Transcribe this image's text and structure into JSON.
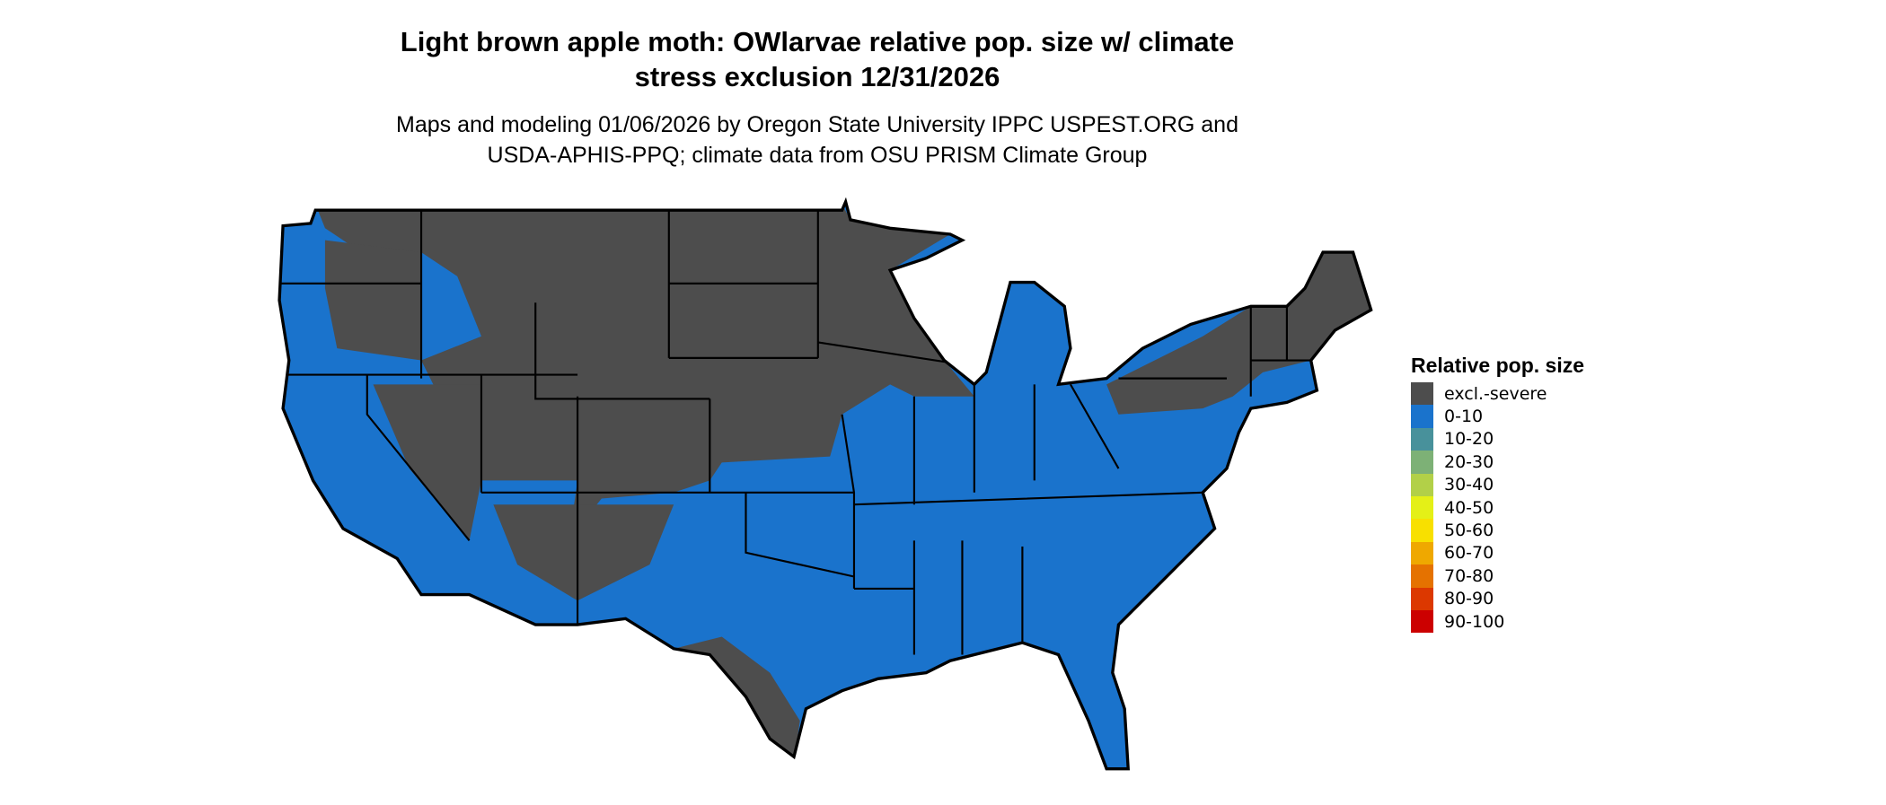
{
  "title": "Light brown apple moth: OWlarvae relative pop. size w/ climate stress exclusion 12/31/2026",
  "title_lines": [
    "Light brown apple moth: OWlarvae relative pop. size w/ climate",
    "stress exclusion 12/31/2026"
  ],
  "subtitle_lines": [
    "Maps and modeling 01/06/2026 by Oregon State University IPPC USPEST.ORG and",
    "USDA-APHIS-PPQ; climate data from OSU PRISM Climate Group"
  ],
  "map": {
    "region": "Contiguous United States",
    "dominant_classes": [
      "excl.-severe",
      "0-10"
    ]
  },
  "legend": {
    "title": "Relative pop. size",
    "items": [
      {
        "label": "excl.-severe",
        "color": "#4d4d4d"
      },
      {
        "label": "0-10",
        "color": "#1a73cc"
      },
      {
        "label": "10-20",
        "color": "#48919b"
      },
      {
        "label": "20-30",
        "color": "#7db176"
      },
      {
        "label": "30-40",
        "color": "#b2d048"
      },
      {
        "label": "40-50",
        "color": "#e4f017"
      },
      {
        "label": "50-60",
        "color": "#f8e000"
      },
      {
        "label": "60-70",
        "color": "#efa800"
      },
      {
        "label": "70-80",
        "color": "#e57200"
      },
      {
        "label": "80-90",
        "color": "#dc3800"
      },
      {
        "label": "90-100",
        "color": "#cc0000"
      }
    ]
  }
}
